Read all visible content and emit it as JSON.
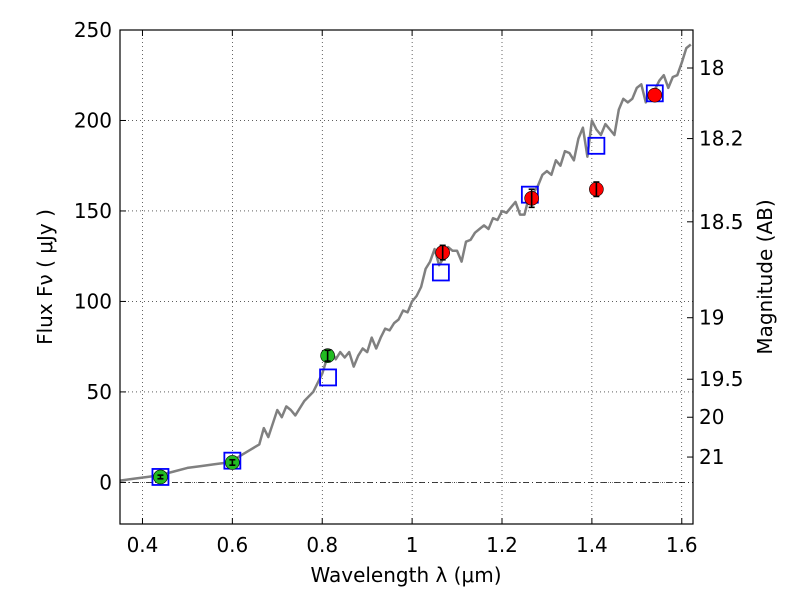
{
  "chart_data": {
    "type": "scatter",
    "xlabel": "Wavelength  λ (μm)",
    "ylabel": "Flux  Fν  ( μJy )",
    "y2label": "Magnitude (AB)",
    "xlim": [
      0.35,
      1.625
    ],
    "ylim": [
      -23,
      250
    ],
    "grid": true,
    "x_ticks": [
      0.4,
      0.6,
      0.8,
      1,
      1.2,
      1.4,
      1.6
    ],
    "x_tick_labels": [
      "0.4",
      "0.6",
      "0.8",
      "1",
      "1.2",
      "1.4",
      "1.6"
    ],
    "y_ticks": [
      0,
      50,
      100,
      150,
      200,
      250
    ],
    "y_tick_labels": [
      "0",
      "50",
      "100",
      "150",
      "200",
      "250"
    ],
    "y2_ticks": [
      {
        "label": "18",
        "flux": 229
      },
      {
        "label": "18.2",
        "flux": 190
      },
      {
        "label": "18.5",
        "flux": 144
      },
      {
        "label": "19",
        "flux": 91
      },
      {
        "label": "19.5",
        "flux": 57
      },
      {
        "label": "20",
        "flux": 36
      },
      {
        "label": "21",
        "flux": 14
      }
    ],
    "zero_line": 0,
    "series": [
      {
        "marker": "line",
        "color": "#808080",
        "x": [
          0.35,
          0.38,
          0.41,
          0.44,
          0.47,
          0.5,
          0.53,
          0.56,
          0.59,
          0.6,
          0.62,
          0.64,
          0.66,
          0.67,
          0.68,
          0.7,
          0.71,
          0.72,
          0.73,
          0.74,
          0.76,
          0.78,
          0.8,
          0.81,
          0.82,
          0.83,
          0.84,
          0.85,
          0.86,
          0.87,
          0.88,
          0.89,
          0.9,
          0.91,
          0.92,
          0.93,
          0.94,
          0.95,
          0.96,
          0.97,
          0.98,
          0.99,
          1.0,
          1.01,
          1.02,
          1.03,
          1.04,
          1.05,
          1.06,
          1.07,
          1.08,
          1.09,
          1.1,
          1.11,
          1.12,
          1.13,
          1.14,
          1.15,
          1.16,
          1.17,
          1.18,
          1.19,
          1.2,
          1.21,
          1.22,
          1.23,
          1.24,
          1.25,
          1.26,
          1.27,
          1.28,
          1.29,
          1.3,
          1.31,
          1.32,
          1.33,
          1.34,
          1.35,
          1.36,
          1.37,
          1.38,
          1.39,
          1.4,
          1.41,
          1.42,
          1.43,
          1.44,
          1.45,
          1.46,
          1.47,
          1.48,
          1.49,
          1.5,
          1.51,
          1.52,
          1.53,
          1.54,
          1.55,
          1.56,
          1.57,
          1.58,
          1.59,
          1.6,
          1.61,
          1.62
        ],
        "y": [
          1,
          2,
          3,
          4,
          6,
          8,
          9,
          10,
          11,
          12,
          15,
          18,
          21,
          30,
          25,
          40,
          36,
          42,
          40,
          37,
          45,
          50,
          60,
          68,
          73,
          68,
          72,
          69,
          72,
          64,
          70,
          74,
          72,
          80,
          74,
          80,
          85,
          84,
          88,
          90,
          95,
          94,
          100,
          103,
          108,
          118,
          122,
          129,
          120,
          124,
          130,
          128,
          128,
          122,
          133,
          134,
          138,
          140,
          142,
          140,
          146,
          145,
          150,
          149,
          152,
          155,
          148,
          148,
          158,
          160,
          164,
          170,
          172,
          170,
          178,
          175,
          183,
          182,
          178,
          190,
          196,
          180,
          200,
          195,
          192,
          198,
          195,
          192,
          206,
          212,
          210,
          212,
          218,
          220,
          210,
          215,
          217,
          222,
          225,
          218,
          224,
          225,
          232,
          240,
          242
        ]
      },
      {
        "marker": "open-square",
        "color": "#0000ff",
        "x": [
          0.44,
          0.6,
          0.813,
          1.064,
          1.262,
          1.41,
          1.54
        ],
        "y": [
          3,
          12,
          58,
          116,
          159,
          186,
          215
        ]
      },
      {
        "marker": "filled-circle",
        "color": "#22bb22",
        "x": [
          0.44,
          0.6,
          0.812
        ],
        "y": [
          3,
          11,
          70
        ],
        "yerr": [
          1,
          1.5,
          3
        ]
      },
      {
        "marker": "filled-circle",
        "color": "#ff0000",
        "x": [
          1.068,
          1.266,
          1.41,
          1.54
        ],
        "y": [
          127,
          157,
          162,
          214
        ],
        "yerr": [
          4,
          5,
          4,
          0
        ]
      }
    ]
  }
}
